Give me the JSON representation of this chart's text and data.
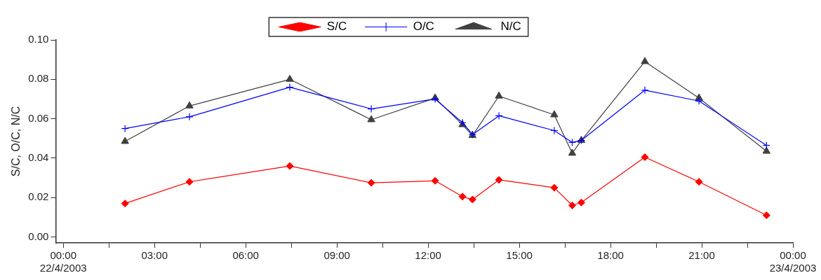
{
  "chart_data": {
    "type": "line",
    "ylabel": "S/C, O/C, N/C",
    "x": [
      2.03,
      4.15,
      7.45,
      10.13,
      12.23,
      13.13,
      13.46,
      14.33,
      16.15,
      16.74,
      17.04,
      19.13,
      20.91,
      23.13
    ],
    "series": [
      {
        "name": "S/C",
        "color": "#ff0000",
        "marker": "diamond",
        "values": [
          0.017,
          0.028,
          0.036,
          0.0275,
          0.0285,
          0.0205,
          0.019,
          0.029,
          0.025,
          0.016,
          0.0175,
          0.0405,
          0.028,
          0.011
        ]
      },
      {
        "name": "O/C",
        "color": "#0000ff",
        "marker": "cross",
        "values": [
          0.055,
          0.061,
          0.076,
          0.065,
          0.07,
          0.058,
          0.052,
          0.0615,
          0.054,
          0.048,
          0.049,
          0.0745,
          0.069,
          0.0465
        ]
      },
      {
        "name": "N/C",
        "color": "#404040",
        "marker": "triangle",
        "values": [
          0.0485,
          0.0665,
          0.08,
          0.0595,
          0.0705,
          0.057,
          0.0515,
          0.0715,
          0.062,
          0.0425,
          0.049,
          0.089,
          0.0705,
          0.0435
        ]
      }
    ],
    "xlim": [
      -0.25,
      24
    ],
    "xticks": [
      {
        "value": 0,
        "label": "00:00\n22/4/2003"
      },
      {
        "value": 1.5,
        "label": null
      },
      {
        "value": 3,
        "label": "03:00"
      },
      {
        "value": 4.5,
        "label": null
      },
      {
        "value": 6,
        "label": "06:00"
      },
      {
        "value": 7.5,
        "label": null
      },
      {
        "value": 9,
        "label": "09:00"
      },
      {
        "value": 10.5,
        "label": null
      },
      {
        "value": 12,
        "label": "12:00"
      },
      {
        "value": 13.5,
        "label": null
      },
      {
        "value": 15,
        "label": "15:00"
      },
      {
        "value": 16.5,
        "label": null
      },
      {
        "value": 18,
        "label": "18:00"
      },
      {
        "value": 19.5,
        "label": null
      },
      {
        "value": 21,
        "label": "21:00"
      },
      {
        "value": 22.5,
        "label": null
      },
      {
        "value": 24,
        "label": "00:00\n23/4/2003"
      }
    ],
    "ylim": [
      -0.003,
      0.1
    ],
    "yticks": [
      {
        "value": 0,
        "label": "0.00"
      },
      {
        "value": 0.02,
        "label": "0.02"
      },
      {
        "value": 0.04,
        "label": "0.04"
      },
      {
        "value": 0.06,
        "label": "0.06"
      },
      {
        "value": 0.08,
        "label": "0.08"
      },
      {
        "value": 0.1,
        "label": "0.10"
      }
    ],
    "grid": false,
    "legend": "top",
    "line_style": "solid"
  }
}
